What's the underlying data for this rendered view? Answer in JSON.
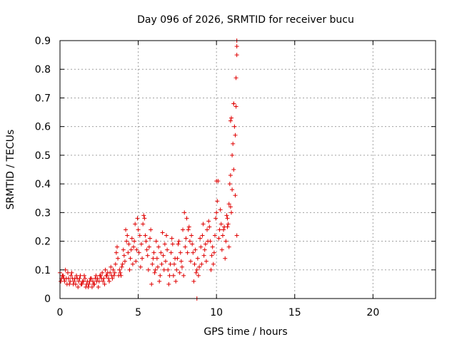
{
  "chart_data": {
    "type": "scatter",
    "title": "Day 096 of 2026, SRMTID for receiver bucu",
    "xlabel": "GPS time / hours",
    "ylabel": "SRMTID / TECUs",
    "xlim": [
      0,
      24
    ],
    "ylim": [
      0,
      0.9
    ],
    "xticks": [
      0,
      5,
      10,
      15,
      20
    ],
    "yticks": [
      0,
      0.1,
      0.2,
      0.3,
      0.4,
      0.5,
      0.6,
      0.7,
      0.8,
      0.9
    ],
    "xtick_labels": [
      "0",
      "5",
      "10",
      "15",
      "20"
    ],
    "ytick_labels": [
      "0",
      "0.1",
      "0.2",
      "0.3",
      "0.4",
      "0.5",
      "0.6",
      "0.7",
      "0.8",
      "0.9"
    ],
    "grid": true,
    "marker": "plus",
    "color": "#e00000",
    "series": [
      {
        "name": "SRMTID",
        "x": [
          0.0,
          0.1,
          0.2,
          0.3,
          0.4,
          0.5,
          0.6,
          0.7,
          0.8,
          0.9,
          1.0,
          1.1,
          1.2,
          1.3,
          1.4,
          1.5,
          1.6,
          1.7,
          1.8,
          1.9,
          2.0,
          2.1,
          2.2,
          2.3,
          2.4,
          2.5,
          2.6,
          2.7,
          2.8,
          2.9,
          3.0,
          3.1,
          3.2,
          3.3,
          3.4,
          3.5,
          3.6,
          3.7,
          3.8,
          3.9,
          4.0,
          4.1,
          4.2,
          4.3,
          4.4,
          4.5,
          4.6,
          4.7,
          4.8,
          4.9,
          5.0,
          5.1,
          5.2,
          5.3,
          5.4,
          5.5,
          5.6,
          5.7,
          5.8,
          5.9,
          6.0,
          6.1,
          6.2,
          6.3,
          6.4,
          6.5,
          6.6,
          6.7,
          6.8,
          6.9,
          7.0,
          7.1,
          7.2,
          7.3,
          7.4,
          7.5,
          7.6,
          7.7,
          7.8,
          7.9,
          8.0,
          8.1,
          8.2,
          8.3,
          8.4,
          8.5,
          8.6,
          8.7,
          8.8,
          8.9,
          9.0,
          9.1,
          9.2,
          9.3,
          9.4,
          9.5,
          9.6,
          9.7,
          9.8,
          9.9,
          10.0,
          10.1,
          10.2,
          10.3,
          10.4,
          10.5,
          10.6,
          10.7,
          10.8,
          10.9,
          11.0,
          11.1,
          11.2,
          11.3,
          0.05,
          0.15,
          0.25,
          0.35,
          0.45,
          0.55,
          0.65,
          0.75,
          0.85,
          0.95,
          1.05,
          1.15,
          1.25,
          1.35,
          1.45,
          1.55,
          1.65,
          1.75,
          1.85,
          1.95,
          2.05,
          2.15,
          2.25,
          2.35,
          2.45,
          2.55,
          2.65,
          2.75,
          2.85,
          2.95,
          3.05,
          3.15,
          3.25,
          3.35,
          3.45,
          3.55,
          3.65,
          3.75,
          3.85,
          3.95,
          4.05,
          4.15,
          4.25,
          4.35,
          4.45,
          4.55,
          4.65,
          4.75,
          4.85,
          4.95,
          5.05,
          5.15,
          5.25,
          5.35,
          5.45,
          5.55,
          5.65,
          5.75,
          5.85,
          5.95,
          6.05,
          6.15,
          6.25,
          6.35,
          6.45,
          6.55,
          6.65,
          6.75,
          6.85,
          6.95,
          7.05,
          7.15,
          7.25,
          7.35,
          7.45,
          7.55,
          7.65,
          7.75,
          7.85,
          7.95,
          8.05,
          8.15,
          8.25,
          8.35,
          8.45,
          8.55,
          8.65,
          8.75,
          8.85,
          8.95,
          9.05,
          9.15,
          9.25,
          9.35,
          9.45,
          9.55,
          9.65,
          9.75,
          9.85,
          9.95,
          10.05,
          10.15,
          10.25,
          10.35,
          10.45,
          10.55,
          10.65,
          10.75,
          10.85,
          10.95,
          11.05,
          11.15,
          11.25,
          11.3,
          11.3,
          11.3,
          11.25,
          11.2,
          11.1,
          11.0,
          10.9,
          10.8,
          10.7,
          10.95,
          11.1,
          8.75,
          10.0,
          10.9
        ],
        "y": [
          0.09,
          0.07,
          0.08,
          0.06,
          0.07,
          0.09,
          0.05,
          0.08,
          0.07,
          0.06,
          0.05,
          0.07,
          0.06,
          0.08,
          0.05,
          0.06,
          0.07,
          0.05,
          0.04,
          0.06,
          0.07,
          0.06,
          0.05,
          0.08,
          0.07,
          0.06,
          0.08,
          0.09,
          0.07,
          0.1,
          0.08,
          0.07,
          0.09,
          0.08,
          0.1,
          0.09,
          0.16,
          0.14,
          0.1,
          0.08,
          0.12,
          0.15,
          0.24,
          0.22,
          0.19,
          0.14,
          0.21,
          0.18,
          0.26,
          0.17,
          0.24,
          0.22,
          0.19,
          0.26,
          0.28,
          0.2,
          0.15,
          0.18,
          0.24,
          0.12,
          0.16,
          0.1,
          0.14,
          0.18,
          0.08,
          0.12,
          0.15,
          0.19,
          0.22,
          0.1,
          0.08,
          0.16,
          0.19,
          0.12,
          0.06,
          0.14,
          0.2,
          0.16,
          0.11,
          0.08,
          0.18,
          0.28,
          0.24,
          0.2,
          0.22,
          0.16,
          0.12,
          0.09,
          0.14,
          0.11,
          0.18,
          0.22,
          0.15,
          0.19,
          0.24,
          0.27,
          0.2,
          0.15,
          0.12,
          0.22,
          0.3,
          0.41,
          0.24,
          0.26,
          0.22,
          0.25,
          0.2,
          0.28,
          0.18,
          0.32,
          0.38,
          0.45,
          0.36,
          0.22,
          0.06,
          0.08,
          0.07,
          0.1,
          0.05,
          0.07,
          0.06,
          0.09,
          0.05,
          0.07,
          0.08,
          0.04,
          0.07,
          0.05,
          0.06,
          0.08,
          0.04,
          0.06,
          0.05,
          0.07,
          0.04,
          0.05,
          0.07,
          0.06,
          0.04,
          0.08,
          0.07,
          0.06,
          0.05,
          0.08,
          0.09,
          0.06,
          0.11,
          0.07,
          0.08,
          0.12,
          0.18,
          0.08,
          0.09,
          0.11,
          0.17,
          0.13,
          0.2,
          0.16,
          0.1,
          0.17,
          0.12,
          0.2,
          0.13,
          0.28,
          0.16,
          0.11,
          0.14,
          0.29,
          0.22,
          0.17,
          0.1,
          0.21,
          0.05,
          0.14,
          0.09,
          0.2,
          0.11,
          0.06,
          0.16,
          0.23,
          0.1,
          0.13,
          0.17,
          0.05,
          0.12,
          0.21,
          0.08,
          0.14,
          0.1,
          0.19,
          0.09,
          0.13,
          0.24,
          0.3,
          0.21,
          0.16,
          0.25,
          0.13,
          0.19,
          0.06,
          0.17,
          0.1,
          0.08,
          0.21,
          0.12,
          0.26,
          0.17,
          0.13,
          0.2,
          0.25,
          0.1,
          0.18,
          0.16,
          0.28,
          0.34,
          0.21,
          0.31,
          0.17,
          0.24,
          0.14,
          0.29,
          0.26,
          0.4,
          0.3,
          0.54,
          0.6,
          0.67,
          0.85,
          0.88,
          0.9,
          0.77,
          0.57,
          0.68,
          0.5,
          0.43,
          0.33,
          0.25,
          0.63,
          0.68,
          0.0,
          0.41,
          0.62
        ]
      }
    ]
  }
}
